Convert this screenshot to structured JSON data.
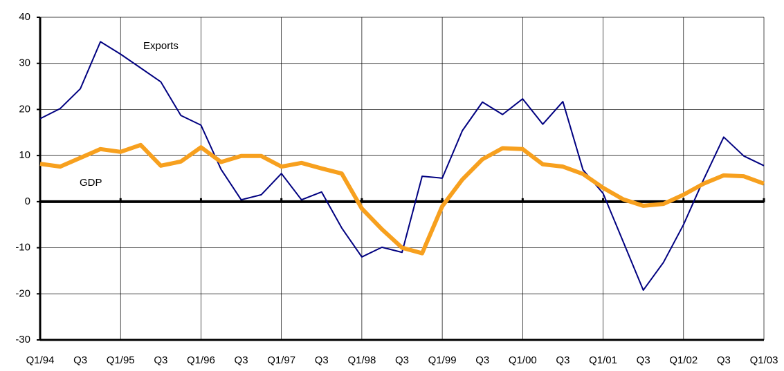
{
  "chart_data": {
    "type": "line",
    "categories": [
      "Q1/94",
      null,
      "Q3",
      null,
      "Q1/95",
      null,
      "Q3",
      null,
      "Q1/96",
      null,
      "Q3",
      null,
      "Q1/97",
      null,
      "Q3",
      null,
      "Q1/98",
      null,
      "Q3",
      null,
      "Q1/99",
      null,
      "Q3",
      null,
      "Q1/00",
      null,
      "Q3",
      null,
      "Q1/01",
      null,
      "Q3",
      null,
      "Q1/02",
      null,
      "Q3",
      null,
      "Q1/03"
    ],
    "series": [
      {
        "name": "Exports",
        "color": "#000080",
        "width": 2,
        "values": [
          18,
          20.2,
          24.5,
          34.7,
          32,
          29,
          26,
          18.7,
          16.6,
          7,
          0.4,
          1.5,
          6.1,
          0.4,
          2.1,
          -5.7,
          -12,
          -9.9,
          -11,
          5.5,
          5.1,
          15.4,
          21.6,
          18.9,
          22.3,
          16.8,
          21.7,
          6.9,
          1.8,
          -8.7,
          -19.2,
          -13.2,
          -5,
          4.8,
          14,
          9.9,
          7.8
        ]
      },
      {
        "name": "GDP",
        "color": "#f7a01e",
        "width": 6,
        "values": [
          8.2,
          7.6,
          9.5,
          11.4,
          10.8,
          12.3,
          7.8,
          8.7,
          11.8,
          8.6,
          9.9,
          9.9,
          7.6,
          8.4,
          7.2,
          6.1,
          -1.5,
          -6,
          -10,
          -11.2,
          -1,
          4.8,
          9.2,
          11.6,
          11.4,
          8.1,
          7.6,
          6,
          3,
          0.5,
          -0.9,
          -0.5,
          1.5,
          3.9,
          5.7,
          5.5,
          3.9
        ]
      }
    ],
    "ylim": [
      -30,
      40
    ],
    "yticks": [
      -30,
      -20,
      -10,
      0,
      10,
      20,
      30,
      40
    ],
    "grid": true
  }
}
